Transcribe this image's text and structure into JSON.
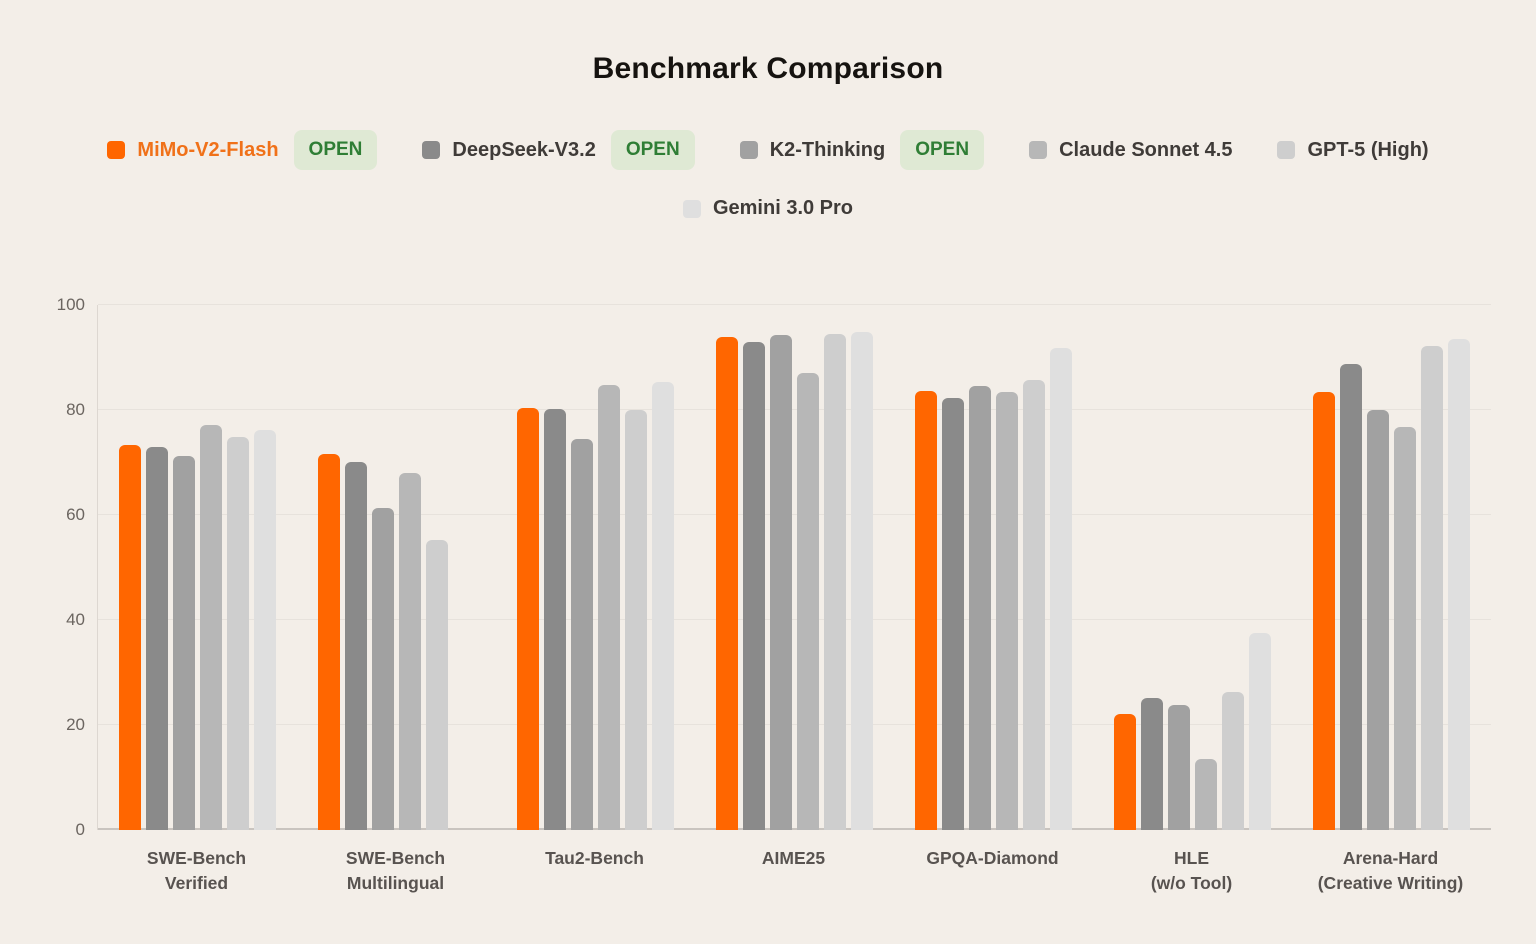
{
  "title": "Benchmark Comparison",
  "legend": {
    "items": [
      {
        "label": "MiMo-V2-Flash",
        "badge": "OPEN",
        "color": "#ff6600",
        "label_color": "#f07119"
      },
      {
        "label": "DeepSeek-V3.2",
        "badge": "OPEN",
        "color": "#8a8a8a",
        "label_color": "#3f3b38"
      },
      {
        "label": "K2-Thinking",
        "badge": "OPEN",
        "color": "#a1a1a1",
        "label_color": "#3f3b38"
      },
      {
        "label": "Claude Sonnet 4.5",
        "color": "#b7b7b7",
        "label_color": "#3f3b38"
      },
      {
        "label": "GPT-5 (High)",
        "color": "#cecece",
        "label_color": "#3f3b38"
      },
      {
        "label": "Gemini 3.0 Pro",
        "color": "#dfdfdf",
        "label_color": "#3f3b38"
      }
    ]
  },
  "chart_data": {
    "type": "bar",
    "title": "Benchmark Comparison",
    "xlabel": "",
    "ylabel": "",
    "ylim": [
      0,
      100
    ],
    "yticks": [
      0,
      20,
      40,
      60,
      80,
      100
    ],
    "grid": true,
    "legend_position": "top",
    "categories": [
      "SWE-Bench\nVerified",
      "SWE-Bench\nMultilingual",
      "Tau2-Bench",
      "AIME25",
      "GPQA-Diamond",
      "HLE\n(w/o Tool)",
      "Arena-Hard\n(Creative Writing)"
    ],
    "series": [
      {
        "name": "MiMo-V2-Flash",
        "color": "#ff6600",
        "values": [
          73.3,
          71.7,
          80.3,
          94.0,
          83.6,
          22.1,
          83.4
        ]
      },
      {
        "name": "DeepSeek-V3.2",
        "color": "#8a8a8a",
        "values": [
          73.0,
          70.1,
          80.1,
          93.0,
          82.2,
          25.2,
          88.8
        ]
      },
      {
        "name": "K2-Thinking",
        "color": "#a1a1a1",
        "values": [
          71.3,
          61.3,
          74.5,
          94.3,
          84.5,
          23.9,
          80.0
        ]
      },
      {
        "name": "Claude Sonnet 4.5",
        "color": "#b7b7b7",
        "values": [
          77.2,
          68.0,
          84.7,
          87.0,
          83.4,
          13.5,
          76.8
        ]
      },
      {
        "name": "GPT-5 (High)",
        "color": "#cecece",
        "values": [
          74.9,
          55.3,
          80.0,
          94.4,
          85.7,
          26.2,
          92.2
        ]
      },
      {
        "name": "Gemini 3.0 Pro",
        "color": "#dfdfdf",
        "values": [
          76.2,
          null,
          85.3,
          94.8,
          91.9,
          37.5,
          93.6
        ]
      }
    ]
  }
}
